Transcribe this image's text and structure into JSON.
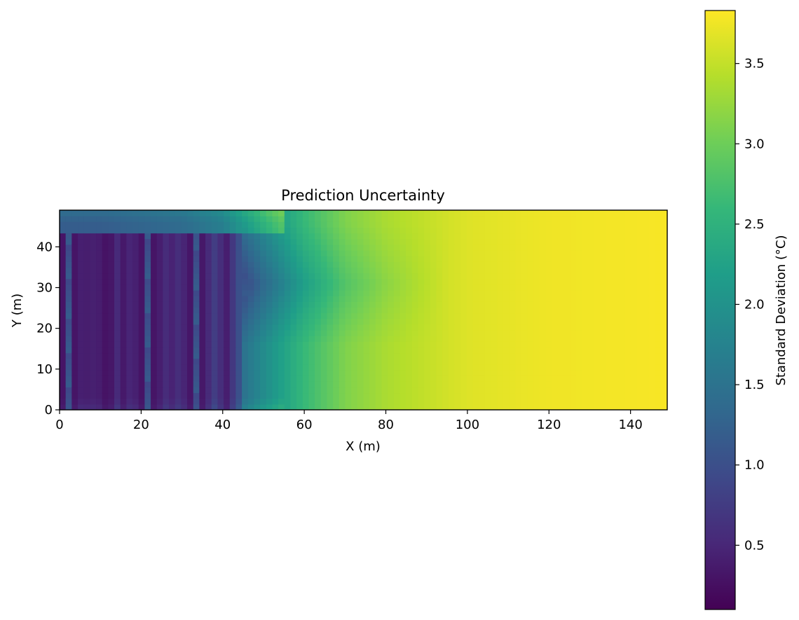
{
  "chart_data": {
    "type": "heatmap",
    "title": "Prediction Uncertainty",
    "xlabel": "X (m)",
    "ylabel": "Y (m)",
    "xlim": [
      0,
      149
    ],
    "ylim": [
      0,
      49
    ],
    "xticks": [
      "0",
      "20",
      "40",
      "60",
      "80",
      "100",
      "120",
      "140"
    ],
    "yticks": [
      "0",
      "10",
      "20",
      "30",
      "40"
    ],
    "colorbar": {
      "label": "Standard Deviation (°C)",
      "range": [
        0.1,
        3.83
      ],
      "ticks": [
        "0.5",
        "1.0",
        "1.5",
        "2.0",
        "2.5",
        "3.0",
        "3.5"
      ],
      "colormap": "viridis"
    },
    "description": "Low uncertainty (≈0.1–1.3 °C) along serpentine survey transects for X in 0–45 m; uncertainty rises to ≈2–3 °C around X 45–75 m and saturates near 3.8 °C for X > 100 m.",
    "grid": false,
    "approx_field": {
      "x": [
        0,
        10,
        20,
        30,
        40,
        50,
        60,
        70,
        80,
        90,
        100,
        120,
        149
      ],
      "y_mid_values": [
        0.6,
        0.6,
        0.7,
        0.8,
        1.1,
        1.9,
        2.6,
        3.1,
        3.35,
        3.5,
        3.65,
        3.75,
        3.8
      ]
    }
  }
}
